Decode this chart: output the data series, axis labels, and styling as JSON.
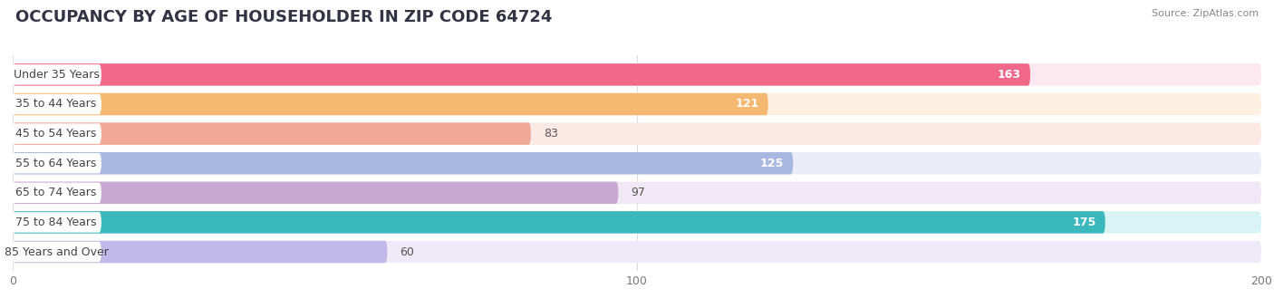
{
  "title": "OCCUPANCY BY AGE OF HOUSEHOLDER IN ZIP CODE 64724",
  "source": "Source: ZipAtlas.com",
  "categories": [
    "Under 35 Years",
    "35 to 44 Years",
    "45 to 54 Years",
    "55 to 64 Years",
    "65 to 74 Years",
    "75 to 84 Years",
    "85 Years and Over"
  ],
  "values": [
    163,
    121,
    83,
    125,
    97,
    175,
    60
  ],
  "bar_colors": [
    "#f0698a",
    "#f5b870",
    "#f0a898",
    "#a8b8e0",
    "#c8a8d0",
    "#3ab8bc",
    "#c0b8e8"
  ],
  "bar_bg_colors": [
    "#fce8ee",
    "#fdf0e0",
    "#fce8e4",
    "#eaecf8",
    "#f0e8f4",
    "#d8f4f4",
    "#eeeaf8"
  ],
  "xlim": [
    0,
    200
  ],
  "xticks": [
    0,
    100,
    200
  ],
  "background_color": "#ffffff",
  "title_fontsize": 13,
  "label_fontsize": 9,
  "value_fontsize": 9
}
